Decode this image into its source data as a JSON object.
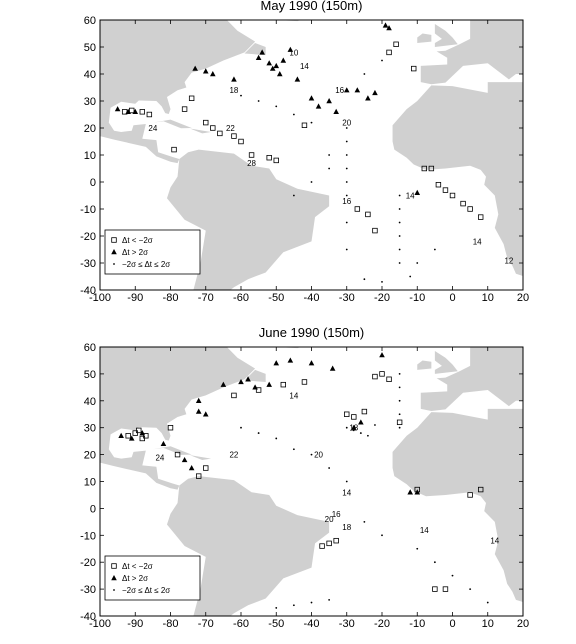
{
  "chart_data": [
    {
      "type": "scatter",
      "title": "May 1990 (150m)",
      "xlim": [
        -100,
        20
      ],
      "ylim": [
        -40,
        60
      ],
      "xticks": [
        -100,
        -90,
        -80,
        -70,
        -60,
        -50,
        -40,
        -30,
        -20,
        -10,
        0,
        10,
        20
      ],
      "yticks": [
        -40,
        -30,
        -20,
        -10,
        0,
        10,
        20,
        30,
        40,
        50,
        60
      ],
      "legend": "lower left",
      "series": [
        {
          "name": "Δt < −2σ",
          "marker": "square",
          "color": "#000000",
          "x": [
            -93,
            -91,
            -88,
            -86,
            -79,
            -76,
            -74,
            -70,
            -68,
            -66,
            -62,
            -60,
            -57,
            -52,
            -50,
            -42,
            -27,
            -24,
            -22,
            -18,
            -16,
            -11,
            -8,
            -6,
            -4,
            -2,
            0,
            3,
            5,
            8
          ],
          "y": [
            26,
            26.5,
            26,
            25,
            12,
            27,
            31,
            22,
            20,
            18,
            17,
            15,
            10,
            9,
            8,
            21,
            -10,
            -12,
            -18,
            48,
            51,
            42,
            5,
            5,
            -1,
            -3,
            -5,
            -8,
            -10,
            -13
          ]
        },
        {
          "name": "Δt > 2σ",
          "marker": "triangle",
          "color": "#000000",
          "x": [
            -95,
            -92,
            -90,
            -73,
            -70,
            -68,
            -62,
            -55,
            -54,
            -52,
            -51,
            -50,
            -49,
            -48,
            -46,
            -44,
            -40,
            -38,
            -35,
            -33,
            -30,
            -27,
            -24,
            -22,
            -19,
            -18,
            -10
          ],
          "y": [
            27,
            26,
            26,
            42,
            41,
            40,
            38,
            46,
            48,
            44,
            42,
            43,
            40,
            45,
            49,
            38,
            31,
            28,
            30,
            26,
            34,
            34,
            31,
            33,
            58,
            57,
            -4
          ]
        },
        {
          "name": "−2σ ≤ Δt ≤ 2σ",
          "marker": "dot",
          "color": "#000000",
          "x": [
            -30,
            -30,
            -30,
            -30,
            -30,
            -30,
            -30,
            -30,
            -15,
            -15,
            -15,
            -15,
            -15,
            -15,
            -60,
            -55,
            -50,
            -45,
            -40,
            -35,
            -35,
            -40,
            -45,
            -25,
            -20,
            -12,
            -10,
            -5,
            -20,
            -25
          ],
          "y": [
            20,
            15,
            10,
            5,
            0,
            -5,
            -15,
            -25,
            -5,
            -10,
            -15,
            -20,
            -25,
            -30,
            32,
            30,
            28,
            25,
            22,
            10,
            5,
            0,
            -5,
            -36,
            -37,
            -35,
            -30,
            -25,
            45,
            40
          ]
        }
      ],
      "annotations": [
        {
          "text": 14,
          "x": -42,
          "y": 43
        },
        {
          "text": 18,
          "x": -62,
          "y": 34
        },
        {
          "text": 20,
          "x": -30,
          "y": 22
        },
        {
          "text": 24,
          "x": -85,
          "y": 20
        },
        {
          "text": 22,
          "x": -63,
          "y": 20
        },
        {
          "text": 28,
          "x": -57,
          "y": 7
        },
        {
          "text": 16,
          "x": -30,
          "y": -7
        },
        {
          "text": 14,
          "x": -12,
          "y": -5
        },
        {
          "text": 14,
          "x": 7,
          "y": -22
        },
        {
          "text": 12,
          "x": 16,
          "y": -29
        },
        {
          "text": 10,
          "x": -45,
          "y": 48
        },
        {
          "text": 16,
          "x": -32,
          "y": 34
        }
      ]
    },
    {
      "type": "scatter",
      "title": "June 1990 (150m)",
      "xlim": [
        -100,
        20
      ],
      "ylim": [
        -40,
        60
      ],
      "xticks": [
        -100,
        -90,
        -80,
        -70,
        -60,
        -50,
        -40,
        -30,
        -20,
        -10,
        0,
        10,
        20
      ],
      "yticks": [
        -40,
        -30,
        -20,
        -10,
        0,
        10,
        20,
        30,
        40,
        50,
        60
      ],
      "legend": "lower left",
      "series": [
        {
          "name": "Δt < −2σ",
          "marker": "square",
          "color": "#000000",
          "x": [
            -92,
            -90,
            -89,
            -88,
            -87,
            -80,
            -78,
            -72,
            -70,
            -62,
            -55,
            -48,
            -42,
            -30,
            -28,
            -25,
            -22,
            -20,
            -18,
            -15,
            -10,
            -5,
            5,
            8,
            -33,
            -35,
            -37,
            -2
          ],
          "y": [
            27,
            28,
            29,
            26,
            27,
            30,
            20,
            12,
            15,
            42,
            44,
            46,
            47,
            35,
            34,
            36,
            49,
            50,
            48,
            32,
            7,
            -30,
            5,
            7,
            -12,
            -13,
            -14,
            -30
          ]
        },
        {
          "name": "Δt > 2σ",
          "marker": "triangle",
          "color": "#000000",
          "x": [
            -94,
            -91,
            -88,
            -82,
            -76,
            -74,
            -72,
            -65,
            -60,
            -58,
            -56,
            -52,
            -50,
            -46,
            -40,
            -34,
            -28,
            -26,
            -20,
            -12,
            -10,
            -72,
            -70
          ],
          "y": [
            27,
            26,
            28,
            24,
            18,
            15,
            40,
            46,
            47,
            48,
            45,
            46,
            54,
            55,
            54,
            52,
            30,
            32,
            57,
            6,
            6,
            36,
            35
          ]
        },
        {
          "name": "−2σ ≤ Δt ≤ 2σ",
          "marker": "dot",
          "color": "#000000",
          "x": [
            -30,
            -28,
            -26,
            -24,
            -22,
            -15,
            -15,
            -15,
            -15,
            -15,
            -60,
            -55,
            -50,
            -45,
            -40,
            -35,
            -30,
            -25,
            -20,
            -10,
            -5,
            0,
            5,
            10,
            -50,
            -45,
            -40,
            -35
          ],
          "y": [
            30,
            29,
            28,
            27,
            31,
            50,
            45,
            40,
            35,
            30,
            30,
            28,
            26,
            22,
            20,
            15,
            10,
            -5,
            -10,
            -15,
            -20,
            -25,
            -30,
            -35,
            -37,
            -36,
            -35,
            -34
          ]
        }
      ],
      "annotations": [
        {
          "text": 14,
          "x": -45,
          "y": 42
        },
        {
          "text": 18,
          "x": -28,
          "y": 30
        },
        {
          "text": 20,
          "x": -38,
          "y": 20
        },
        {
          "text": 24,
          "x": -83,
          "y": 19
        },
        {
          "text": 22,
          "x": -62,
          "y": 20
        },
        {
          "text": 14,
          "x": -30,
          "y": 6
        },
        {
          "text": 16,
          "x": -33,
          "y": -2
        },
        {
          "text": 14,
          "x": -8,
          "y": -8
        },
        {
          "text": 14,
          "x": 12,
          "y": -12
        },
        {
          "text": 18,
          "x": -30,
          "y": -7
        },
        {
          "text": 20,
          "x": -35,
          "y": -4
        }
      ]
    }
  ]
}
